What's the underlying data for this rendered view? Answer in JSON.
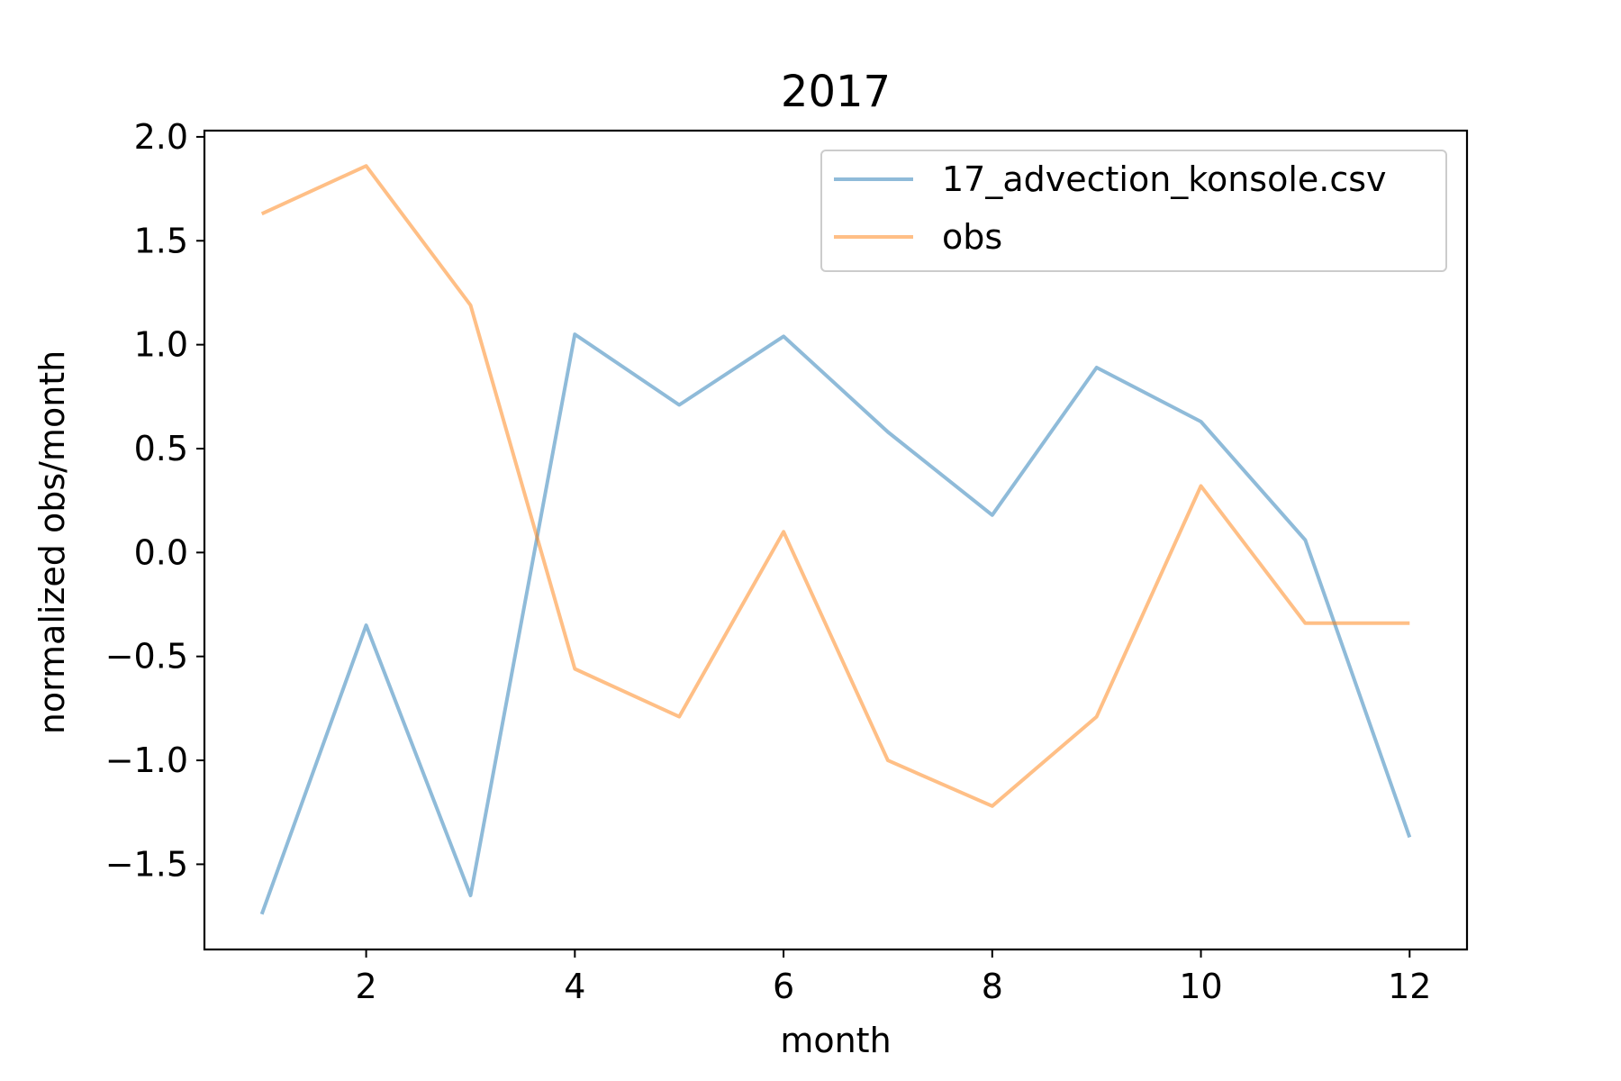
{
  "chart_data": {
    "type": "line",
    "title": "2017",
    "xlabel": "month",
    "ylabel": "normalized obs/month",
    "x": [
      1,
      2,
      3,
      4,
      5,
      6,
      7,
      8,
      9,
      10,
      11,
      12
    ],
    "xticks": [
      2,
      4,
      6,
      8,
      10,
      12
    ],
    "xtick_labels": [
      "2",
      "4",
      "6",
      "8",
      "10",
      "12"
    ],
    "yticks": [
      -1.5,
      -1.0,
      -0.5,
      0.0,
      0.5,
      1.0,
      1.5,
      2.0
    ],
    "ytick_labels": [
      "−1.5",
      "−1.0",
      "−0.5",
      "0.0",
      "0.5",
      "1.0",
      "1.5",
      "2.0"
    ],
    "xlim": [
      0.45,
      12.55
    ],
    "ylim": [
      -1.91,
      2.03
    ],
    "grid": false,
    "legend_position": "top-right",
    "series": [
      {
        "name": "17_advection_konsole.csv",
        "color": "#1f77b4",
        "opacity": 0.5,
        "values": [
          -1.74,
          -0.35,
          -1.65,
          1.05,
          0.71,
          1.04,
          0.58,
          0.18,
          0.89,
          0.63,
          0.06,
          -1.37
        ]
      },
      {
        "name": "obs",
        "color": "#ff7f0e",
        "opacity": 0.5,
        "values": [
          1.63,
          1.86,
          1.19,
          -0.56,
          -0.79,
          0.1,
          -1.0,
          -1.22,
          -0.79,
          0.32,
          -0.34,
          -0.34
        ]
      }
    ]
  }
}
